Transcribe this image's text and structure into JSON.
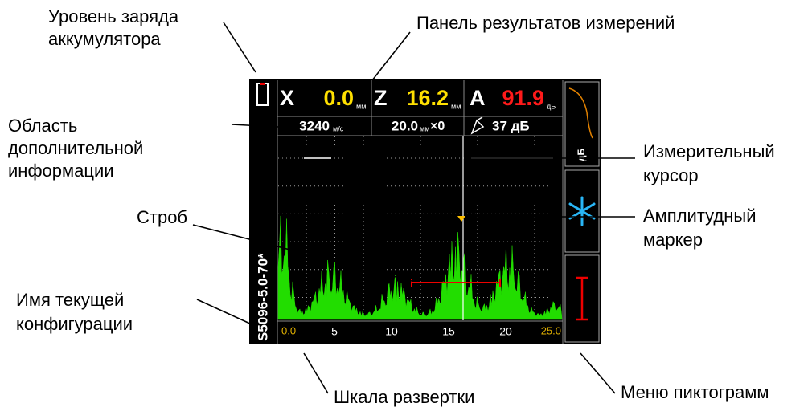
{
  "callouts": {
    "battery": [
      "Уровень заряда",
      "аккумулятора"
    ],
    "results_panel": [
      "Панель результатов измерений"
    ],
    "info_area": [
      "Область",
      "дополнительной",
      "информации"
    ],
    "cursor": [
      "Измерительный",
      "курсор"
    ],
    "marker": [
      "Амплитудный",
      "маркер"
    ],
    "gate": [
      "Строб"
    ],
    "config": [
      "Имя текущей",
      "конфигурации"
    ],
    "scale": [
      "Шкала развертки"
    ],
    "menu": [
      "Меню пиктограмм"
    ]
  },
  "screen": {
    "results": {
      "x_label": "X",
      "x_value": "0.0",
      "x_unit": "мм",
      "z_label": "Z",
      "z_value": "16.2",
      "z_unit": "мм",
      "a_label": "A",
      "a_value": "91.9",
      "a_unit": "дБ"
    },
    "info": {
      "velocity": "3240",
      "velocity_unit": "м/с",
      "delay": "20.0",
      "delay_unit": "мм",
      "delay_suffix": "×0",
      "gain": "37 дБ"
    },
    "scale": [
      "0.0",
      "5",
      "10",
      "15",
      "20",
      "25.0"
    ],
    "config_name": "S5096-5.0-70*",
    "menu": {
      "graph_label": "дБ"
    }
  }
}
